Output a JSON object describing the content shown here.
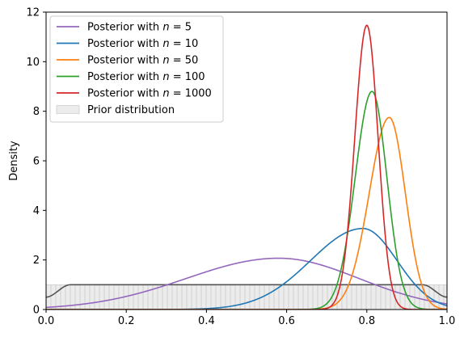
{
  "chart_data": {
    "type": "line",
    "title": "",
    "xlabel": "",
    "ylabel": "Density",
    "xlim": [
      0,
      1
    ],
    "ylim": [
      0,
      12
    ],
    "xticks": [
      "0.0",
      "0.2",
      "0.4",
      "0.6",
      "0.8",
      "1.0"
    ],
    "yticks": [
      "0",
      "2",
      "4",
      "6",
      "8",
      "10",
      "12"
    ],
    "grid": false,
    "legend_position": "top-left",
    "series": [
      {
        "name": "Posterior with n = 5",
        "legend_prefix": "Posterior with ",
        "legend_var": "n",
        "legend_suffix": " = 5",
        "color": "#9467bd",
        "shape": "beta",
        "mode": 0.58,
        "peak": 2.07,
        "spread_left": 0.23,
        "spread_right": 0.2
      },
      {
        "name": "Posterior with n = 10",
        "legend_prefix": "Posterior with ",
        "legend_var": "n",
        "legend_suffix": " = 10",
        "color": "#1f77b4",
        "shape": "beta",
        "mode": 0.79,
        "peak": 3.27,
        "spread_left": 0.13,
        "spread_right": 0.085
      },
      {
        "name": "Posterior with n = 50",
        "legend_prefix": "Posterior with ",
        "legend_var": "n",
        "legend_suffix": " = 50",
        "color": "#ff7f0e",
        "shape": "beta",
        "mode": 0.856,
        "peak": 7.75,
        "spread_left": 0.05,
        "spread_right": 0.04
      },
      {
        "name": "Posterior with n = 100",
        "legend_prefix": "Posterior with ",
        "legend_var": "n",
        "legend_suffix": " = 100",
        "color": "#2ca02c",
        "shape": "beta",
        "mode": 0.813,
        "peak": 8.8,
        "spread_left": 0.042,
        "spread_right": 0.037
      },
      {
        "name": "Posterior with n = 1000",
        "legend_prefix": "Posterior with ",
        "legend_var": "n",
        "legend_suffix": " = 1000",
        "color": "#d62728",
        "shape": "beta",
        "mode": 0.8,
        "peak": 11.47,
        "spread_left": 0.03,
        "spread_right": 0.028
      }
    ],
    "prior": {
      "name": "Prior distribution",
      "fill_color": "#d9d9d9",
      "line_color": "#555555",
      "level": 1.0,
      "edge_value": 0.5,
      "edge_width": 0.06
    }
  }
}
